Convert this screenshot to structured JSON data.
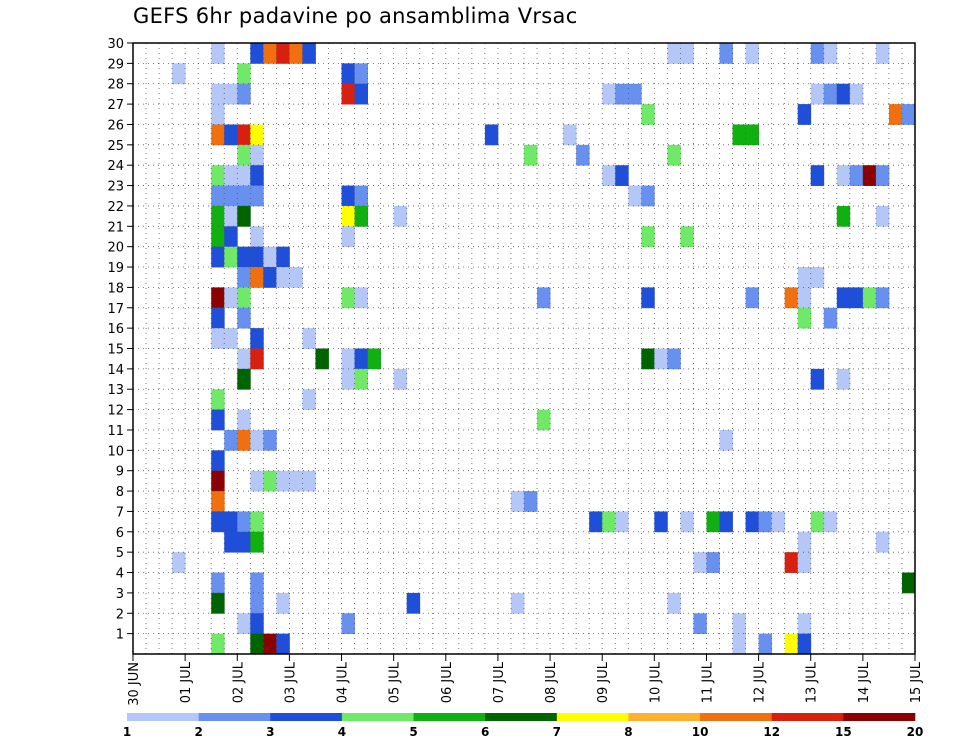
{
  "chart_data": {
    "type": "heatmap",
    "title": "GEFS 6hr padavine po ansamblima Vrsac",
    "x_tick_labels": [
      "30 JUN",
      "01 JUL",
      "02 JUL",
      "03 JUL",
      "04 JUL",
      "05 JUL",
      "06 JUL",
      "07 JUL",
      "08 JUL",
      "09 JUL",
      "10 JUL",
      "11 JUL",
      "12 JUL",
      "13 JUL",
      "14 JUL",
      "15 JUL"
    ],
    "y_tick_labels": [
      "1",
      "2",
      "3",
      "4",
      "5",
      "6",
      "7",
      "8",
      "9",
      "10",
      "11",
      "12",
      "13",
      "14",
      "15",
      "16",
      "17",
      "18",
      "19",
      "20",
      "21",
      "22",
      "23",
      "24",
      "25",
      "26",
      "27",
      "28",
      "29",
      "30"
    ],
    "x_range_steps": [
      0,
      60
    ],
    "y_range_members": [
      0,
      30
    ],
    "grid": true,
    "colorbar": {
      "labels": [
        "1",
        "2",
        "3",
        "4",
        "5",
        "6",
        "7",
        "8",
        "10",
        "12",
        "15",
        "20"
      ],
      "colors": [
        "#b4c7f7",
        "#6890ee",
        "#1f4fd8",
        "#70e868",
        "#10b010",
        "#006400",
        "#ffff00",
        "#ffb030",
        "#f07010",
        "#d82010",
        "#8b0000"
      ]
    },
    "cells": [
      [
        30,
        7,
        0
      ],
      [
        30,
        10,
        2
      ],
      [
        30,
        11,
        8
      ],
      [
        30,
        12,
        9
      ],
      [
        30,
        13,
        8
      ],
      [
        30,
        14,
        2
      ],
      [
        30,
        42,
        0
      ],
      [
        30,
        43,
        0
      ],
      [
        30,
        46,
        1
      ],
      [
        30,
        48,
        0
      ],
      [
        30,
        53,
        1
      ],
      [
        30,
        54,
        0
      ],
      [
        30,
        58,
        0
      ],
      [
        29,
        4,
        0
      ],
      [
        29,
        9,
        3
      ],
      [
        29,
        17,
        2
      ],
      [
        29,
        18,
        1
      ],
      [
        28,
        7,
        0
      ],
      [
        28,
        8,
        0
      ],
      [
        28,
        9,
        1
      ],
      [
        28,
        17,
        9
      ],
      [
        28,
        18,
        2
      ],
      [
        28,
        37,
        0
      ],
      [
        28,
        38,
        1
      ],
      [
        28,
        39,
        1
      ],
      [
        28,
        53,
        0
      ],
      [
        28,
        54,
        1
      ],
      [
        28,
        55,
        2
      ],
      [
        28,
        56,
        0
      ],
      [
        27,
        7,
        0
      ],
      [
        27,
        40,
        3
      ],
      [
        27,
        52,
        2
      ],
      [
        27,
        59,
        8
      ],
      [
        27,
        60,
        1
      ],
      [
        26,
        7,
        8
      ],
      [
        26,
        8,
        2
      ],
      [
        26,
        9,
        9
      ],
      [
        26,
        10,
        6
      ],
      [
        26,
        28,
        2
      ],
      [
        26,
        34,
        0
      ],
      [
        26,
        47,
        4
      ],
      [
        26,
        48,
        4
      ],
      [
        25,
        9,
        3
      ],
      [
        25,
        10,
        0
      ],
      [
        25,
        31,
        3
      ],
      [
        25,
        35,
        1
      ],
      [
        25,
        42,
        3
      ],
      [
        24,
        7,
        3
      ],
      [
        24,
        8,
        0
      ],
      [
        24,
        9,
        0
      ],
      [
        24,
        10,
        2
      ],
      [
        24,
        37,
        0
      ],
      [
        24,
        38,
        2
      ],
      [
        24,
        53,
        2
      ],
      [
        24,
        55,
        0
      ],
      [
        24,
        56,
        1
      ],
      [
        24,
        57,
        10
      ],
      [
        24,
        58,
        1
      ],
      [
        23,
        7,
        1
      ],
      [
        23,
        8,
        1
      ],
      [
        23,
        9,
        1
      ],
      [
        23,
        10,
        1
      ],
      [
        23,
        17,
        2
      ],
      [
        23,
        18,
        1
      ],
      [
        23,
        39,
        0
      ],
      [
        23,
        40,
        1
      ],
      [
        22,
        7,
        4
      ],
      [
        22,
        8,
        0
      ],
      [
        22,
        9,
        5
      ],
      [
        22,
        17,
        6
      ],
      [
        22,
        18,
        4
      ],
      [
        22,
        21,
        0
      ],
      [
        22,
        55,
        4
      ],
      [
        22,
        58,
        0
      ],
      [
        21,
        7,
        4
      ],
      [
        21,
        8,
        2
      ],
      [
        21,
        10,
        0
      ],
      [
        21,
        17,
        0
      ],
      [
        21,
        40,
        3
      ],
      [
        21,
        43,
        3
      ],
      [
        20,
        7,
        2
      ],
      [
        20,
        8,
        3
      ],
      [
        20,
        9,
        2
      ],
      [
        20,
        10,
        2
      ],
      [
        20,
        11,
        0
      ],
      [
        20,
        12,
        2
      ],
      [
        19,
        9,
        1
      ],
      [
        19,
        10,
        8
      ],
      [
        19,
        11,
        2
      ],
      [
        19,
        12,
        0
      ],
      [
        19,
        13,
        0
      ],
      [
        19,
        52,
        0
      ],
      [
        19,
        53,
        0
      ],
      [
        18,
        7,
        10
      ],
      [
        18,
        8,
        0
      ],
      [
        18,
        9,
        3
      ],
      [
        18,
        17,
        3
      ],
      [
        18,
        18,
        0
      ],
      [
        18,
        32,
        1
      ],
      [
        18,
        40,
        2
      ],
      [
        18,
        48,
        1
      ],
      [
        18,
        51,
        8
      ],
      [
        18,
        52,
        0
      ],
      [
        18,
        55,
        2
      ],
      [
        18,
        56,
        2
      ],
      [
        18,
        57,
        3
      ],
      [
        18,
        58,
        1
      ],
      [
        17,
        7,
        2
      ],
      [
        17,
        9,
        1
      ],
      [
        17,
        52,
        3
      ],
      [
        17,
        54,
        1
      ],
      [
        16,
        7,
        0
      ],
      [
        16,
        8,
        0
      ],
      [
        16,
        10,
        2
      ],
      [
        16,
        14,
        0
      ],
      [
        15,
        9,
        0
      ],
      [
        15,
        10,
        9
      ],
      [
        15,
        15,
        5
      ],
      [
        15,
        17,
        0
      ],
      [
        15,
        18,
        2
      ],
      [
        15,
        19,
        4
      ],
      [
        15,
        40,
        5
      ],
      [
        15,
        41,
        0
      ],
      [
        15,
        42,
        1
      ],
      [
        14,
        9,
        5
      ],
      [
        14,
        17,
        0
      ],
      [
        14,
        18,
        3
      ],
      [
        14,
        21,
        0
      ],
      [
        14,
        53,
        2
      ],
      [
        14,
        55,
        0
      ],
      [
        13,
        7,
        3
      ],
      [
        13,
        14,
        0
      ],
      [
        12,
        7,
        2
      ],
      [
        12,
        9,
        0
      ],
      [
        12,
        32,
        3
      ],
      [
        11,
        8,
        1
      ],
      [
        11,
        9,
        8
      ],
      [
        11,
        10,
        0
      ],
      [
        11,
        11,
        1
      ],
      [
        11,
        46,
        0
      ],
      [
        10,
        7,
        2
      ],
      [
        9,
        7,
        10
      ],
      [
        9,
        10,
        0
      ],
      [
        9,
        11,
        3
      ],
      [
        9,
        12,
        0
      ],
      [
        9,
        13,
        0
      ],
      [
        9,
        14,
        0
      ],
      [
        8,
        7,
        8
      ],
      [
        8,
        30,
        0
      ],
      [
        8,
        31,
        1
      ],
      [
        7,
        7,
        2
      ],
      [
        7,
        8,
        2
      ],
      [
        7,
        9,
        1
      ],
      [
        7,
        10,
        3
      ],
      [
        7,
        36,
        2
      ],
      [
        7,
        37,
        3
      ],
      [
        7,
        38,
        0
      ],
      [
        7,
        41,
        2
      ],
      [
        7,
        43,
        0
      ],
      [
        7,
        45,
        4
      ],
      [
        7,
        46,
        2
      ],
      [
        7,
        48,
        2
      ],
      [
        7,
        49,
        1
      ],
      [
        7,
        50,
        0
      ],
      [
        7,
        53,
        3
      ],
      [
        7,
        54,
        0
      ],
      [
        6,
        8,
        2
      ],
      [
        6,
        9,
        2
      ],
      [
        6,
        10,
        4
      ],
      [
        6,
        52,
        0
      ],
      [
        6,
        58,
        0
      ],
      [
        5,
        4,
        0
      ],
      [
        5,
        44,
        0
      ],
      [
        5,
        45,
        1
      ],
      [
        5,
        51,
        9
      ],
      [
        5,
        52,
        0
      ],
      [
        4,
        7,
        1
      ],
      [
        4,
        10,
        1
      ],
      [
        4,
        60,
        5
      ],
      [
        3,
        7,
        5
      ],
      [
        3,
        10,
        1
      ],
      [
        3,
        12,
        0
      ],
      [
        3,
        22,
        2
      ],
      [
        3,
        30,
        0
      ],
      [
        3,
        42,
        0
      ],
      [
        2,
        9,
        0
      ],
      [
        2,
        10,
        2
      ],
      [
        2,
        17,
        1
      ],
      [
        2,
        44,
        1
      ],
      [
        2,
        47,
        0
      ],
      [
        2,
        52,
        0
      ],
      [
        1,
        7,
        3
      ],
      [
        1,
        10,
        5
      ],
      [
        1,
        11,
        10
      ],
      [
        1,
        12,
        2
      ],
      [
        1,
        47,
        0
      ],
      [
        1,
        49,
        1
      ],
      [
        1,
        51,
        6
      ],
      [
        1,
        52,
        2
      ]
    ]
  }
}
